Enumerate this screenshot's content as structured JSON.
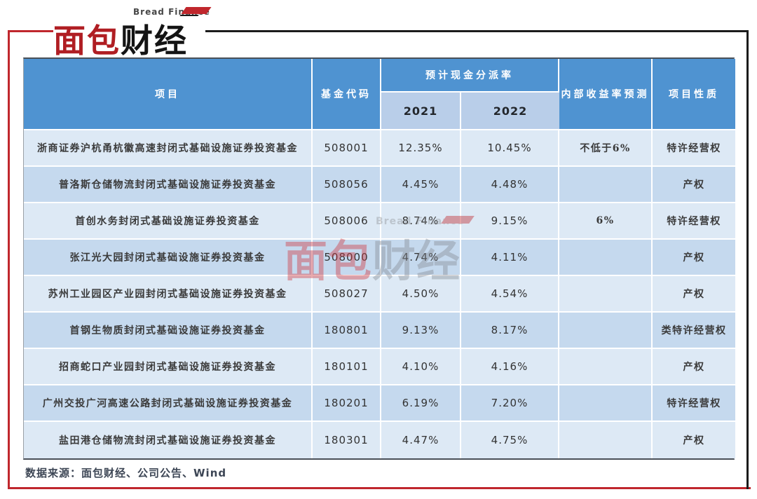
{
  "logo": {
    "brand_en": "Bread Finance",
    "brand_cn_red": "面包",
    "brand_cn_black": "财经"
  },
  "table": {
    "headers": {
      "project": "项目",
      "fund_code": "基金代码",
      "cash_distribution": "预计现金分派率",
      "year_2021": "2021",
      "year_2022": "2022",
      "irr_forecast": "内部收益率预测",
      "project_nature": "项目性质"
    },
    "column_keys": [
      "project",
      "code",
      "y2021",
      "y2022",
      "irr",
      "nature"
    ],
    "rows": [
      {
        "project": "浙商证券沪杭甬杭徽高速封闭式基础设施证券投资基金",
        "code": "508001",
        "y2021": "12.35%",
        "y2022": "10.45%",
        "irr": "不低于6%",
        "nature": "特许经营权"
      },
      {
        "project": "普洛斯仓储物流封闭式基础设施证券投资基金",
        "code": "508056",
        "y2021": "4.45%",
        "y2022": "4.48%",
        "irr": "",
        "nature": "产权"
      },
      {
        "project": "首创水务封闭式基础设施证券投资基金",
        "code": "508006",
        "y2021": "8.74%",
        "y2022": "9.15%",
        "irr": "6%",
        "nature": "特许经营权"
      },
      {
        "project": "张江光大园封闭式基础设施证券投资基金",
        "code": "508000",
        "y2021": "4.74%",
        "y2022": "4.11%",
        "irr": "",
        "nature": "产权"
      },
      {
        "project": "苏州工业园区产业园封闭式基础设施证券投资基金",
        "code": "508027",
        "y2021": "4.50%",
        "y2022": "4.54%",
        "irr": "",
        "nature": "产权"
      },
      {
        "project": "首钢生物质封闭式基础设施证券投资基金",
        "code": "180801",
        "y2021": "9.13%",
        "y2022": "8.17%",
        "irr": "",
        "nature": "类特许经营权"
      },
      {
        "project": "招商蛇口产业园封闭式基础设施证券投资基金",
        "code": "180101",
        "y2021": "4.10%",
        "y2022": "4.16%",
        "irr": "",
        "nature": "产权"
      },
      {
        "project": "广州交投广河高速公路封闭式基础设施证券投资基金",
        "code": "180201",
        "y2021": "6.19%",
        "y2022": "7.20%",
        "irr": "",
        "nature": "特许经营权"
      },
      {
        "project": "盐田港仓储物流封闭式基础设施证券投资基金",
        "code": "180301",
        "y2021": "4.47%",
        "y2022": "4.75%",
        "irr": "",
        "nature": "产权"
      }
    ]
  },
  "watermark": {
    "brand_en": "Bread Finance",
    "brand_cn_red": "面包",
    "brand_cn_gray": "财经"
  },
  "footer": {
    "source": "数据来源：面包财经、公司公告、Wind"
  },
  "colors": {
    "header_blue": "#4f93d1",
    "subheader_blue": "#b9cee9",
    "row_light": "#dde9f5",
    "row_dark": "#c5d9ee",
    "brand_red": "#c0272d",
    "frame_black": "#1b1b1b"
  },
  "chart_data": {
    "type": "table",
    "columns": [
      "项目",
      "基金代码",
      "预计现金分派率 2021",
      "预计现金分派率 2022",
      "内部收益率预测",
      "项目性质"
    ],
    "rows": [
      [
        "浙商证券沪杭甬杭徽高速封闭式基础设施证券投资基金",
        "508001",
        "12.35%",
        "10.45%",
        "不低于6%",
        "特许经营权"
      ],
      [
        "普洛斯仓储物流封闭式基础设施证券投资基金",
        "508056",
        "4.45%",
        "4.48%",
        "",
        "产权"
      ],
      [
        "首创水务封闭式基础设施证券投资基金",
        "508006",
        "8.74%",
        "9.15%",
        "6%",
        "特许经营权"
      ],
      [
        "张江光大园封闭式基础设施证券投资基金",
        "508000",
        "4.74%",
        "4.11%",
        "",
        "产权"
      ],
      [
        "苏州工业园区产业园封闭式基础设施证券投资基金",
        "508027",
        "4.50%",
        "4.54%",
        "",
        "产权"
      ],
      [
        "首钢生物质封闭式基础设施证券投资基金",
        "180801",
        "9.13%",
        "8.17%",
        "",
        "类特许经营权"
      ],
      [
        "招商蛇口产业园封闭式基础设施证券投资基金",
        "180101",
        "4.10%",
        "4.16%",
        "",
        "产权"
      ],
      [
        "广州交投广河高速公路封闭式基础设施证券投资基金",
        "180201",
        "6.19%",
        "7.20%",
        "",
        "特许经营权"
      ],
      [
        "盐田港仓储物流封闭式基础设施证券投资基金",
        "180301",
        "4.47%",
        "4.75%",
        "",
        "产权"
      ]
    ],
    "source_note": "数据来源：面包财经、公司公告、Wind"
  }
}
